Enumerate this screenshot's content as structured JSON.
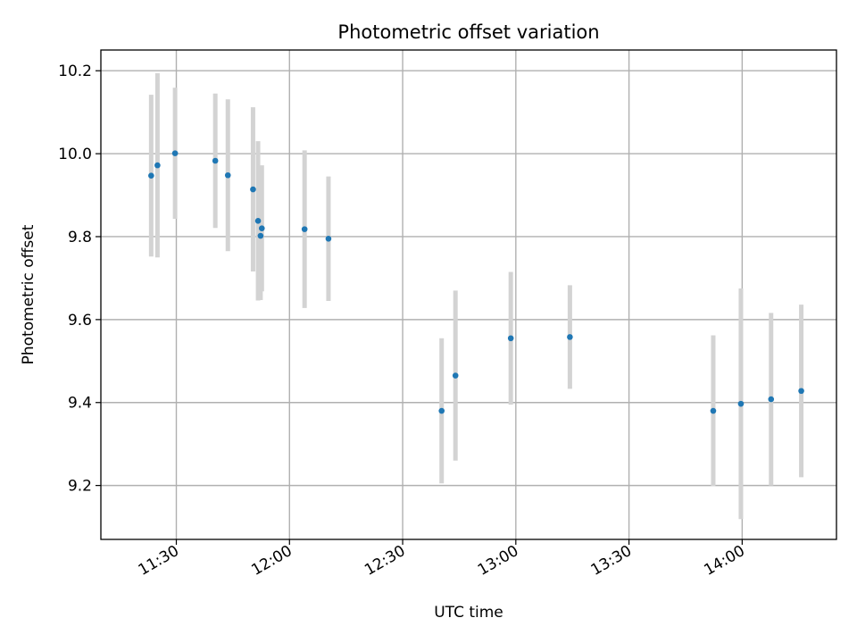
{
  "chart_data": {
    "type": "scatter",
    "title": "Photometric offset variation",
    "xlabel": "UTC time",
    "ylabel": "Photometric offset",
    "x_axis_kind": "time",
    "xlim": [
      "11:10",
      "14:25"
    ],
    "ylim": [
      9.07,
      10.25
    ],
    "x_ticks": [
      "11:30",
      "12:00",
      "12:30",
      "13:00",
      "13:30",
      "14:00"
    ],
    "y_ticks": [
      9.2,
      9.4,
      9.6,
      9.8,
      10.0,
      10.2
    ],
    "y_tick_labels": [
      "9.2",
      "9.4",
      "9.6",
      "9.8",
      "10.0",
      "10.2"
    ],
    "grid": true,
    "marker_color": "#1f77b4",
    "errorbar_color": "#d3d3d3",
    "series": [
      {
        "points": [
          {
            "x": "11:23:20",
            "y": 9.947,
            "err": 0.195
          },
          {
            "x": "11:25:00",
            "y": 9.972,
            "err": 0.222
          },
          {
            "x": "11:29:40",
            "y": 10.001,
            "err": 0.158
          },
          {
            "x": "11:40:20",
            "y": 9.983,
            "err": 0.162
          },
          {
            "x": "11:43:40",
            "y": 9.948,
            "err": 0.183
          },
          {
            "x": "11:50:20",
            "y": 9.914,
            "err": 0.198
          },
          {
            "x": "11:51:40",
            "y": 9.838,
            "err": 0.192
          },
          {
            "x": "11:52:20",
            "y": 9.802,
            "err": 0.155
          },
          {
            "x": "11:52:40",
            "y": 9.82,
            "err": 0.152
          },
          {
            "x": "12:04:00",
            "y": 9.818,
            "err": 0.19
          },
          {
            "x": "12:10:20",
            "y": 9.795,
            "err": 0.15
          },
          {
            "x": "12:40:20",
            "y": 9.38,
            "err": 0.175
          },
          {
            "x": "12:44:00",
            "y": 9.465,
            "err": 0.205
          },
          {
            "x": "12:58:40",
            "y": 9.555,
            "err": 0.16
          },
          {
            "x": "13:14:20",
            "y": 9.558,
            "err": 0.125
          },
          {
            "x": "13:52:20",
            "y": 9.38,
            "err": 0.182
          },
          {
            "x": "13:59:40",
            "y": 9.397,
            "err": 0.278
          },
          {
            "x": "14:07:40",
            "y": 9.408,
            "err": 0.208
          },
          {
            "x": "14:15:40",
            "y": 9.428,
            "err": 0.208
          }
        ]
      }
    ]
  }
}
